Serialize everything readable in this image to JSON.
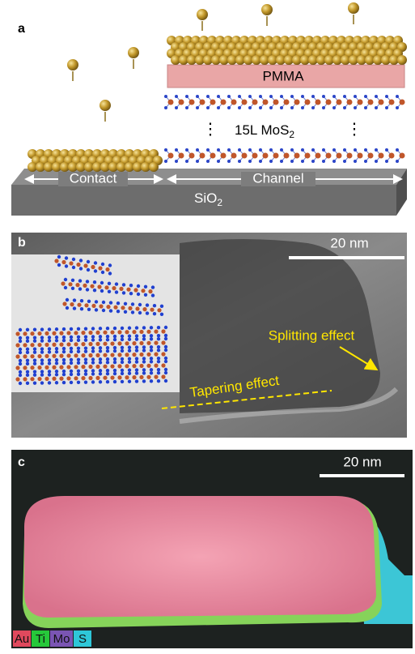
{
  "panel_a": {
    "label": "a",
    "pmma": "PMMA",
    "mos2": "15L MoS",
    "mos2_sub": "2",
    "contact": "Contact",
    "channel": "Channel",
    "substrate": "SiO",
    "substrate_sub": "2"
  },
  "panel_b": {
    "label": "b",
    "scale_bar": "20 nm",
    "splitting": "Splitting effect",
    "tapering": "Tapering effect"
  },
  "panel_c": {
    "label": "c",
    "scale_bar": "20 nm",
    "legend": [
      "Au",
      "Ti",
      "Mo",
      "S"
    ]
  }
}
